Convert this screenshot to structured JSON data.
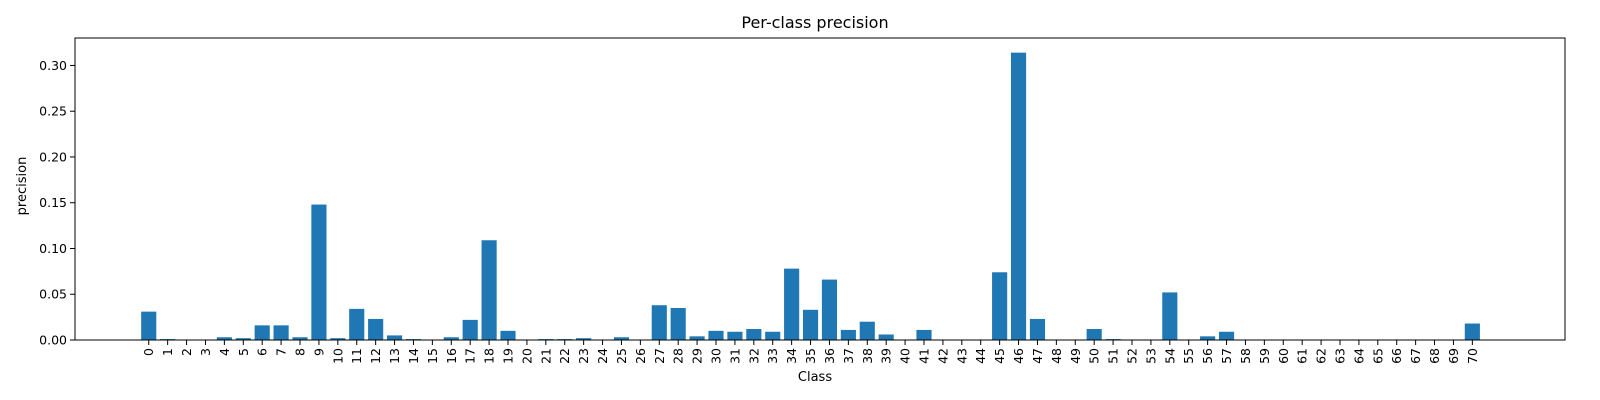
{
  "chart_data": {
    "type": "bar",
    "title": "Per-class precision",
    "xlabel": "Class",
    "ylabel": "precision",
    "categories": [
      "0",
      "1",
      "2",
      "3",
      "4",
      "5",
      "6",
      "7",
      "8",
      "9",
      "10",
      "11",
      "12",
      "13",
      "14",
      "15",
      "16",
      "17",
      "18",
      "19",
      "20",
      "21",
      "22",
      "23",
      "24",
      "25",
      "26",
      "27",
      "28",
      "29",
      "30",
      "31",
      "32",
      "33",
      "34",
      "35",
      "36",
      "37",
      "38",
      "39",
      "40",
      "41",
      "42",
      "43",
      "44",
      "45",
      "46",
      "47",
      "48",
      "49",
      "50",
      "51",
      "52",
      "53",
      "54",
      "55",
      "56",
      "57",
      "58",
      "59",
      "60",
      "61",
      "62",
      "63",
      "64",
      "65",
      "66",
      "67",
      "68",
      "69",
      "70"
    ],
    "values": [
      0.031,
      0.001,
      0.0,
      0.0,
      0.003,
      0.002,
      0.016,
      0.016,
      0.003,
      0.148,
      0.002,
      0.034,
      0.023,
      0.005,
      0.001,
      0.0,
      0.003,
      0.022,
      0.109,
      0.01,
      0.0,
      0.001,
      0.001,
      0.002,
      0.0,
      0.003,
      0.0,
      0.038,
      0.035,
      0.004,
      0.01,
      0.009,
      0.012,
      0.009,
      0.078,
      0.033,
      0.066,
      0.011,
      0.02,
      0.006,
      0.0,
      0.011,
      0.0,
      0.0,
      0.0,
      0.074,
      0.314,
      0.023,
      0.0,
      0.0,
      0.012,
      0.001,
      0.0,
      0.0,
      0.052,
      0.0,
      0.004,
      0.009,
      0.0,
      0.0,
      0.0,
      0.0,
      0.0,
      0.0,
      0.0,
      0.0,
      0.0,
      0.0,
      0.0,
      0.0,
      0.018
    ],
    "yticks": [
      "0.00",
      "0.05",
      "0.10",
      "0.15",
      "0.20",
      "0.25",
      "0.30"
    ],
    "ylim": [
      0,
      0.33
    ],
    "bar_color": "#1f77b4",
    "grid": false,
    "legend": "none"
  }
}
